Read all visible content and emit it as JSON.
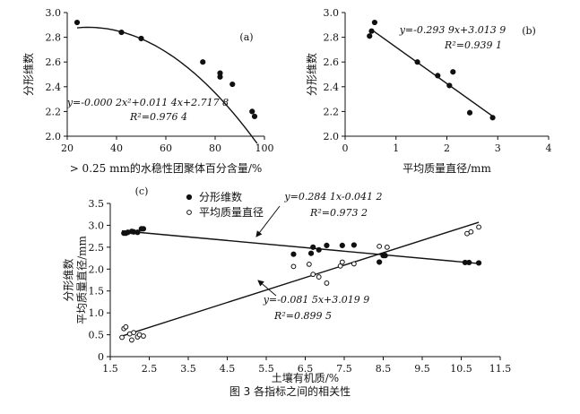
{
  "caption": "图 3    各指标之间的相关性",
  "chart_data": [
    {
      "id": "a",
      "type": "scatter",
      "panel_label": "(a)",
      "xlabel": "> 0.25 mm的水稳性团聚体百分含量/%",
      "ylabel": "分形维数",
      "xlim": [
        20,
        100
      ],
      "ylim": [
        2.0,
        3.0
      ],
      "xticks": [
        "20",
        "40",
        "60",
        "80",
        "100"
      ],
      "yticks": [
        "2.0",
        "2.2",
        "2.4",
        "2.6",
        "2.8",
        "3.0"
      ],
      "points": [
        [
          24,
          2.92
        ],
        [
          42,
          2.84
        ],
        [
          50,
          2.79
        ],
        [
          75,
          2.6
        ],
        [
          82,
          2.51
        ],
        [
          82,
          2.48
        ],
        [
          87,
          2.42
        ],
        [
          95,
          2.2
        ],
        [
          96,
          2.16
        ]
      ],
      "fit": {
        "a": -0.0002,
        "b": 0.0114,
        "c": 2.7178,
        "x_range": [
          24,
          97
        ]
      },
      "equation": "y=-0.000 2x²+0.011 4x+2.717 8",
      "r2": "R²=0.976 4"
    },
    {
      "id": "b",
      "type": "scatter",
      "panel_label": "(b)",
      "xlabel": "平均质量直径/mm",
      "ylabel": "分形维数",
      "xlim": [
        0,
        4
      ],
      "ylim": [
        2.0,
        3.0
      ],
      "xticks": [
        "0",
        "1",
        "2",
        "3",
        "4"
      ],
      "yticks": [
        "2.0",
        "2.2",
        "2.4",
        "2.6",
        "2.8",
        "3.0"
      ],
      "points": [
        [
          0.48,
          2.81
        ],
        [
          0.52,
          2.85
        ],
        [
          0.58,
          2.92
        ],
        [
          1.42,
          2.6
        ],
        [
          1.82,
          2.49
        ],
        [
          2.05,
          2.41
        ],
        [
          2.12,
          2.52
        ],
        [
          2.45,
          2.19
        ],
        [
          2.9,
          2.15
        ]
      ],
      "fit": {
        "slope": -0.2939,
        "intercept": 3.0139,
        "x_range": [
          0.5,
          2.9
        ]
      },
      "equation": "y=-0.293 9x+3.013 9",
      "r2": "R²=0.939 1"
    },
    {
      "id": "c",
      "type": "scatter",
      "panel_label": "(c)",
      "xlabel": "土壤有机质/%",
      "ylabel": "分形维数\n平均质量直径/mm",
      "xlim": [
        1.5,
        11.5
      ],
      "ylim": [
        0,
        3.5
      ],
      "xticks": [
        "1.5",
        "2.5",
        "3.5",
        "4.5",
        "5.5",
        "6.5",
        "7.5",
        "8.5",
        "9.5",
        "10.5",
        "11.5"
      ],
      "yticks": [
        "0",
        "0.5",
        "1.0",
        "1.5",
        "2.0",
        "2.5",
        "3.0",
        "3.5"
      ],
      "series": [
        {
          "name": "分形维数",
          "marker": "filled",
          "points": [
            [
              1.85,
              2.82
            ],
            [
              1.9,
              2.82
            ],
            [
              1.95,
              2.84
            ],
            [
              2.05,
              2.86
            ],
            [
              2.1,
              2.85
            ],
            [
              2.2,
              2.84
            ],
            [
              2.3,
              2.92
            ],
            [
              2.35,
              2.92
            ],
            [
              6.2,
              2.34
            ],
            [
              6.65,
              2.36
            ],
            [
              6.7,
              2.5
            ],
            [
              6.85,
              2.44
            ],
            [
              7.05,
              2.54
            ],
            [
              7.45,
              2.54
            ],
            [
              7.75,
              2.55
            ],
            [
              8.4,
              2.16
            ],
            [
              8.5,
              2.31
            ],
            [
              8.55,
              2.31
            ],
            [
              10.6,
              2.15
            ],
            [
              10.7,
              2.15
            ],
            [
              10.95,
              2.14
            ]
          ],
          "fit": {
            "slope": -0.0815,
            "intercept": 3.0199,
            "x_range": [
              1.8,
              10.95
            ]
          },
          "equation": "y=-0.081 5x+3.019 9",
          "r2": "R²=0.899 5"
        },
        {
          "name": "平均质量直径",
          "marker": "open",
          "points": [
            [
              1.8,
              0.44
            ],
            [
              1.85,
              0.64
            ],
            [
              1.9,
              0.68
            ],
            [
              2.0,
              0.52
            ],
            [
              2.05,
              0.38
            ],
            [
              2.1,
              0.55
            ],
            [
              2.2,
              0.45
            ],
            [
              2.25,
              0.5
            ],
            [
              2.35,
              0.47
            ],
            [
              6.2,
              2.06
            ],
            [
              6.6,
              2.11
            ],
            [
              6.7,
              1.88
            ],
            [
              6.85,
              1.82
            ],
            [
              7.05,
              1.68
            ],
            [
              7.4,
              2.07
            ],
            [
              7.45,
              2.16
            ],
            [
              7.75,
              2.12
            ],
            [
              8.4,
              2.52
            ],
            [
              8.6,
              2.5
            ],
            [
              10.65,
              2.81
            ],
            [
              10.75,
              2.85
            ],
            [
              10.95,
              2.96
            ]
          ],
          "fit": {
            "slope": 0.2841,
            "intercept": -0.0412,
            "x_range": [
              1.8,
              10.95
            ]
          },
          "equation": "y=0.284 1x-0.041 2",
          "r2": "R²=0.973 2"
        }
      ]
    }
  ]
}
